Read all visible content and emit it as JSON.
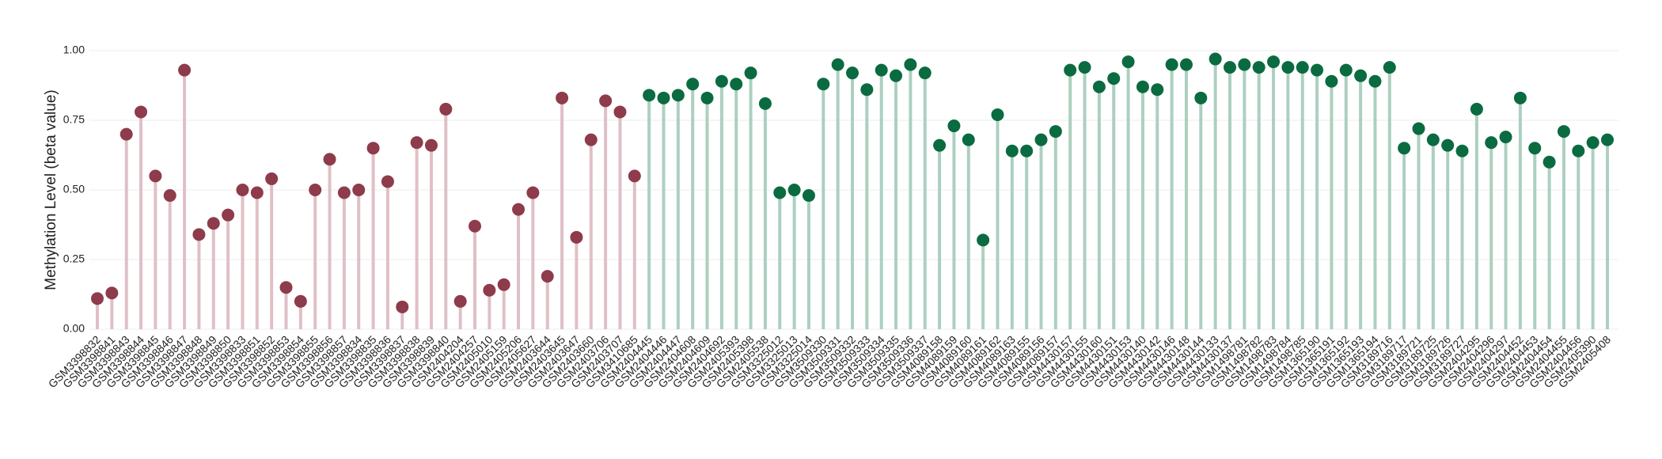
{
  "chart_data": {
    "type": "lollipop",
    "y_label": "Methylation Level (beta value)",
    "categories": [
      "GSM3398832",
      "GSM3398841",
      "GSM3398843",
      "GSM3398844",
      "GSM3398845",
      "GSM3398846",
      "GSM3398847",
      "GSM3398848",
      "GSM3398849",
      "GSM3398850",
      "GSM3398833",
      "GSM3398851",
      "GSM3398852",
      "GSM3398853",
      "GSM3398854",
      "GSM3398855",
      "GSM3398856",
      "GSM3398857",
      "GSM3398834",
      "GSM3398835",
      "GSM3398836",
      "GSM3398837",
      "GSM3398838",
      "GSM3398839",
      "GSM3398840",
      "GSM2404204",
      "GSM2404257",
      "GSM2405010",
      "GSM2405159",
      "GSM2405206",
      "GSM2405627",
      "GSM2403644",
      "GSM2403645",
      "GSM2403647",
      "GSM2403660",
      "GSM2403706",
      "GSM2403707",
      "GSM3410685",
      "GSM2404445",
      "GSM2404446",
      "GSM2404447",
      "GSM2404608",
      "GSM2404609",
      "GSM2404692",
      "GSM2405393",
      "GSM2405398",
      "GSM2405538",
      "GSM3325012",
      "GSM3325013",
      "GSM3325014",
      "GSM3509330",
      "GSM3509331",
      "GSM3509332",
      "GSM3509333",
      "GSM3509334",
      "GSM3509335",
      "GSM3509336",
      "GSM3509337",
      "GSM4089158",
      "GSM4089159",
      "GSM4089160",
      "GSM4089161",
      "GSM4089162",
      "GSM4089163",
      "GSM4089155",
      "GSM4089156",
      "GSM4089157",
      "GSM4430157",
      "GSM4430155",
      "GSM4430160",
      "GSM4430151",
      "GSM4430153",
      "GSM4430140",
      "GSM4430142",
      "GSM4430146",
      "GSM4430148",
      "GSM4430144",
      "GSM4430133",
      "GSM4430137",
      "GSM1498781",
      "GSM1498782",
      "GSM1498783",
      "GSM1498784",
      "GSM1498785",
      "GSM1365190",
      "GSM1365191",
      "GSM1365192",
      "GSM1365193",
      "GSM1365194",
      "GSM3189716",
      "GSM3189717",
      "GSM3189721",
      "GSM3189725",
      "GSM3189726",
      "GSM3189727",
      "GSM2404295",
      "GSM2404296",
      "GSM2404297",
      "GSM2404452",
      "GSM2404453",
      "GSM2404454",
      "GSM2404455",
      "GSM2404456",
      "GSM2405390",
      "GSM2405408"
    ],
    "series": [
      {
        "color": "#8e3b4b",
        "stem_color": "#dfc0c6",
        "values": [
          0.11,
          0.13,
          0.7,
          0.78,
          0.55,
          0.48,
          0.93,
          0.34,
          0.38,
          0.41,
          0.5,
          0.49,
          0.54,
          0.15,
          0.1,
          0.5,
          0.61,
          0.49,
          0.5,
          0.65,
          0.53,
          0.08,
          0.67,
          0.66,
          0.79,
          0.1,
          0.37,
          0.14,
          0.16,
          0.43,
          0.49,
          0.19,
          0.83,
          0.33,
          0.68,
          0.82,
          0.78,
          0.55,
          null,
          null,
          null,
          null,
          null,
          null,
          null,
          null,
          null,
          null,
          null,
          null,
          null,
          null,
          null,
          null,
          null,
          null,
          null,
          null,
          null,
          null,
          null,
          null,
          null,
          null,
          null,
          null,
          null,
          null,
          null,
          null,
          null,
          null,
          null,
          null,
          null,
          null,
          null,
          null,
          null,
          null,
          null,
          null,
          null,
          null,
          null,
          null,
          null,
          null,
          null,
          null,
          null,
          null,
          null,
          null,
          null,
          null,
          null,
          null,
          null,
          null,
          null,
          null,
          null,
          null,
          null
        ]
      },
      {
        "color": "#0b6b40",
        "stem_color": "#acd0c0",
        "values": [
          null,
          null,
          null,
          null,
          null,
          null,
          null,
          null,
          null,
          null,
          null,
          null,
          null,
          null,
          null,
          null,
          null,
          null,
          null,
          null,
          null,
          null,
          null,
          null,
          null,
          null,
          null,
          null,
          null,
          null,
          null,
          null,
          null,
          null,
          null,
          null,
          null,
          null,
          0.84,
          0.83,
          0.84,
          0.88,
          0.83,
          0.89,
          0.88,
          0.92,
          0.81,
          0.49,
          0.5,
          0.48,
          0.88,
          0.95,
          0.92,
          0.86,
          0.93,
          0.91,
          0.95,
          0.92,
          0.66,
          0.73,
          0.68,
          0.32,
          0.77,
          0.64,
          0.64,
          0.68,
          0.71,
          0.93,
          0.94,
          0.87,
          0.9,
          0.96,
          0.87,
          0.86,
          0.95,
          0.95,
          0.83,
          0.97,
          0.94,
          0.95,
          0.94,
          0.96,
          0.94,
          0.94,
          0.93,
          0.89,
          0.93,
          0.91,
          0.89,
          0.94,
          0.65,
          0.72,
          0.68,
          0.66,
          0.64,
          0.79,
          0.67,
          0.69,
          0.83,
          0.65,
          0.6,
          0.71,
          0.64,
          0.67,
          0.68
        ]
      }
    ],
    "ylim": [
      0,
      1
    ],
    "yticks": [
      {
        "value": 0,
        "label": "0.00"
      },
      {
        "value": 0.25,
        "label": "0.25"
      },
      {
        "value": 0.5,
        "label": "0.50"
      },
      {
        "value": 0.75,
        "label": "0.75"
      },
      {
        "value": 1,
        "label": "1.00"
      }
    ],
    "grid": true
  }
}
